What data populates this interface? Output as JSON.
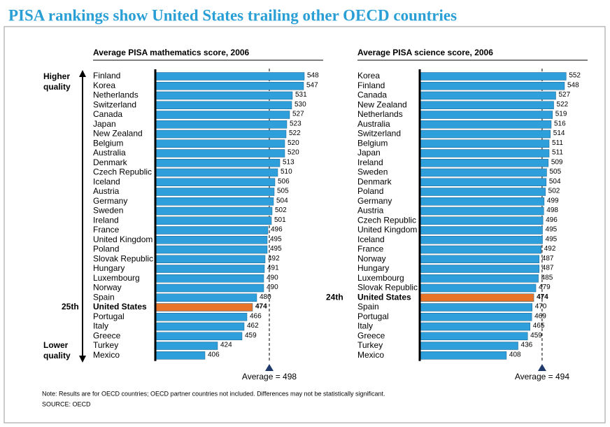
{
  "title": "PISA rankings show United States trailing other OECD countries",
  "quality_labels": {
    "top": "Higher quality",
    "bottom": "Lower quality"
  },
  "note": "Note: Results are for OECD countries; OECD partner countries not included. Differences may not be statistically significant.",
  "source": "SOURCE: OECD",
  "chart_data": [
    {
      "type": "bar",
      "orientation": "horizontal",
      "title": "Average PISA mathematics score, 2006",
      "categories": [
        "Finland",
        "Korea",
        "Netherlands",
        "Switzerland",
        "Canada",
        "Japan",
        "New Zealand",
        "Belgium",
        "Australia",
        "Denmark",
        "Czech Republic",
        "Iceland",
        "Austria",
        "Germany",
        "Sweden",
        "Ireland",
        "France",
        "United Kingdom",
        "Poland",
        "Slovak Republic",
        "Hungary",
        "Luxembourg",
        "Norway",
        "Spain",
        "United States",
        "Portugal",
        "Italy",
        "Greece",
        "Turkey",
        "Mexico"
      ],
      "values": [
        548,
        547,
        531,
        530,
        527,
        523,
        522,
        520,
        520,
        513,
        510,
        506,
        505,
        504,
        502,
        501,
        496,
        495,
        495,
        492,
        491,
        490,
        490,
        480,
        474,
        466,
        462,
        459,
        424,
        406
      ],
      "color": "#2e9fdb",
      "xlim": [
        335,
        555
      ],
      "highlight": {
        "category": "United States",
        "color": "#e8742a",
        "rank": "25th"
      },
      "average": {
        "value": 498,
        "label": "Average = 498"
      }
    },
    {
      "type": "bar",
      "orientation": "horizontal",
      "title": "Average PISA science score, 2006",
      "categories": [
        "Korea",
        "Finland",
        "Canada",
        "New Zealand",
        "Netherlands",
        "Australia",
        "Switzerland",
        "Belgium",
        "Japan",
        "Ireland",
        "Sweden",
        "Denmark",
        "Poland",
        "Germany",
        "Austria",
        "Czech Republic",
        "United Kingdom",
        "Iceland",
        "France",
        "Norway",
        "Hungary",
        "Luxembourg",
        "Slovak Republic",
        "United States",
        "Spain",
        "Portugal",
        "Italy",
        "Greece",
        "Turkey",
        "Mexico"
      ],
      "values": [
        552,
        548,
        527,
        522,
        519,
        516,
        514,
        511,
        511,
        509,
        505,
        504,
        502,
        499,
        498,
        496,
        495,
        495,
        492,
        487,
        487,
        485,
        479,
        474,
        470,
        469,
        465,
        459,
        436,
        408
      ],
      "color": "#2e9fdb",
      "xlim": [
        199,
        570
      ],
      "highlight": {
        "category": "United States",
        "color": "#e8742a",
        "rank": "24th"
      },
      "average": {
        "value": 494,
        "label": "Average = 494"
      }
    }
  ]
}
